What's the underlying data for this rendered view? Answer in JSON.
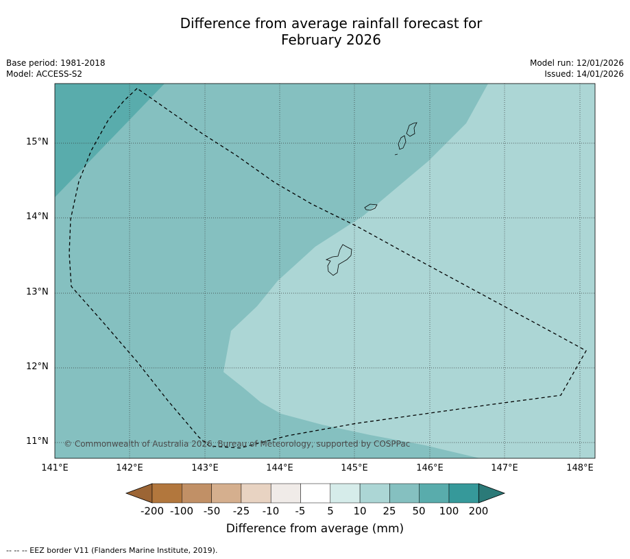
{
  "title_line1": "Difference from average rainfall forecast for",
  "title_line2": "February 2026",
  "base_period": "Base period: 1981-2018",
  "model": "Model: ACCESS-S2",
  "model_run": "Model run: 12/01/2026",
  "issued": "Issued: 14/01/2026",
  "copyright": "© Commonwealth of Australia 2026, Bureau of Meteorology, supported by COSPPac",
  "lat_labels": [
    "15°N",
    "14°N",
    "13°N",
    "12°N",
    "11°N"
  ],
  "lon_labels": [
    "141°E",
    "142°E",
    "143°E",
    "144°E",
    "145°E",
    "146°E",
    "147°E",
    "148°E"
  ],
  "colorbar": {
    "labels": [
      "-200",
      "-100",
      "-50",
      "-25",
      "-10",
      "-5",
      "5",
      "10",
      "25",
      "50",
      "100",
      "200"
    ],
    "colors": [
      "#9c6535",
      "#b2773d",
      "#c19066",
      "#d5af8e",
      "#e8d3c2",
      "#f0ebe8",
      "#ffffff",
      "#d6ecea",
      "#acd6d5",
      "#85c0c0",
      "#59acac",
      "#36999a",
      "#2b7a78"
    ],
    "title": "Difference from average (mm)"
  },
  "map_colors": {
    "dark": "#59acac",
    "mid": "#85c0c0",
    "light": "#acd6d5"
  },
  "footnote": "--  --  -- EEZ border V11 (Flanders Marine Institute, 2019)."
}
